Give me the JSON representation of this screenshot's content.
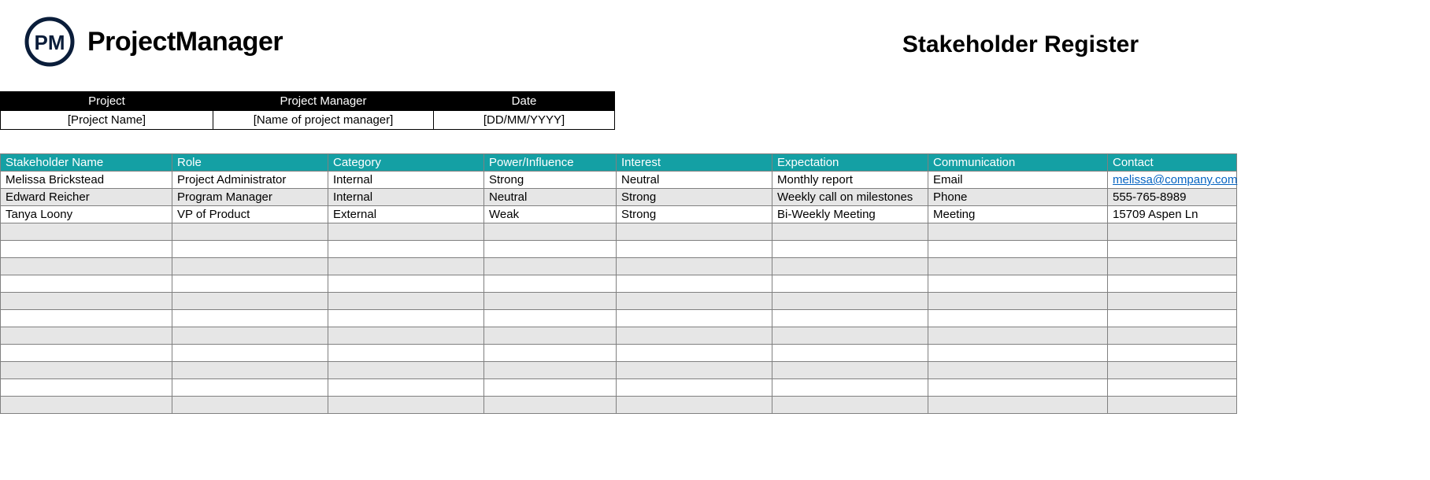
{
  "brand": {
    "name": "ProjectManager",
    "logo_letters": "PM",
    "logo_stroke": "#0a1d3a",
    "logo_text_color": "#000000"
  },
  "page_title": "Stakeholder Register",
  "meta": {
    "headers": [
      "Project",
      "Project Manager",
      "Date"
    ],
    "values": [
      "[Project Name]",
      "[Name of project manager]",
      "[DD/MM/YYYY]"
    ]
  },
  "table": {
    "header_bg": "#14a0a4",
    "alt_row_bg": "#e6e6e6",
    "columns": [
      "Stakeholder Name",
      "Role",
      "Category",
      "Power/Influence",
      "Interest",
      "Expectation",
      "Communication",
      "Contact"
    ],
    "rows": [
      {
        "name": "Melissa Brickstead",
        "role": "Project Administrator",
        "category": "Internal",
        "power": "Strong",
        "interest": "Neutral",
        "expectation": "Monthly report",
        "communication": "Email",
        "contact": "melissa@company.com",
        "contact_is_link": true
      },
      {
        "name": "Edward Reicher",
        "role": "Program Manager",
        "category": "Internal",
        "power": "Neutral",
        "interest": "Strong",
        "expectation": "Weekly call on milestones",
        "communication": "Phone",
        "contact": "555-765-8989",
        "contact_is_link": false
      },
      {
        "name": "Tanya Loony",
        "role": "VP of Product",
        "category": "External",
        "power": "Weak",
        "interest": "Strong",
        "expectation": "Bi-Weekly Meeting",
        "communication": "Meeting",
        "contact": "15709 Aspen Ln",
        "contact_is_link": false
      }
    ],
    "empty_rows": 11
  }
}
